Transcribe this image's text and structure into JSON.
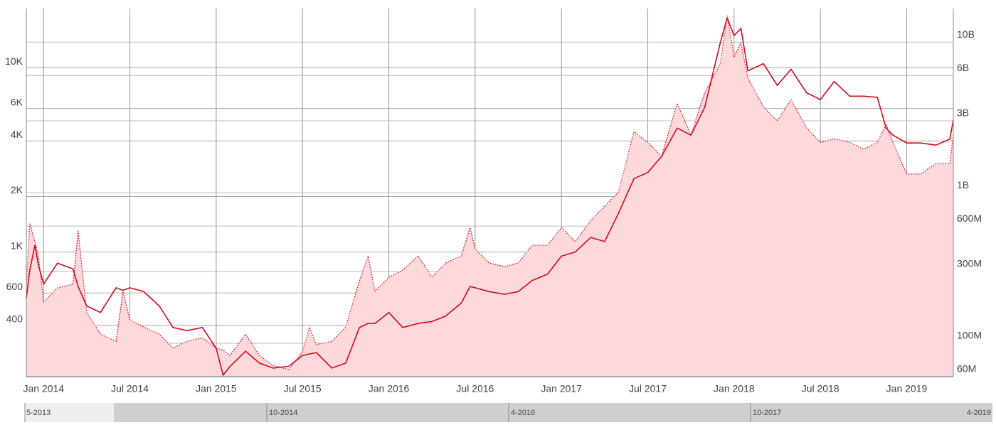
{
  "chart_data": {
    "type": "line",
    "ylog": true,
    "y2log": true,
    "grid": true,
    "xlim": [
      2013.9,
      2019.27
    ],
    "xticks": [
      {
        "value": 2014.0,
        "label": "Jan 2014"
      },
      {
        "value": 2014.5,
        "label": "Jul 2014"
      },
      {
        "value": 2015.0,
        "label": "Jan 2015"
      },
      {
        "value": 2015.5,
        "label": "Jul 2015"
      },
      {
        "value": 2016.0,
        "label": "Jan 2016"
      },
      {
        "value": 2016.5,
        "label": "Jul 2016"
      },
      {
        "value": 2017.0,
        "label": "Jan 2017"
      },
      {
        "value": 2017.5,
        "label": "Jul 2017"
      },
      {
        "value": 2018.0,
        "label": "Jan 2018"
      },
      {
        "value": 2018.5,
        "label": "Jul 2018"
      },
      {
        "value": 2019.0,
        "label": "Jan 2019"
      }
    ],
    "ylim": [
      211,
      20900
    ],
    "yticks": [
      400,
      600,
      {
        "value": 1000,
        "label": "1K"
      },
      {
        "value": 2000,
        "label": "2K"
      },
      {
        "value": 4000,
        "label": "4K"
      },
      {
        "value": 6000,
        "label": "6K"
      },
      {
        "value": 10000,
        "label": "10K"
      }
    ],
    "y2lim": [
      60000000,
      16700000000
    ],
    "y2ticks": [
      {
        "value": 60000000,
        "label": "60M"
      },
      {
        "value": 100000000,
        "label": "100M"
      },
      {
        "value": 300000000,
        "label": "300M"
      },
      {
        "value": 600000000,
        "label": "600M"
      },
      {
        "value": 1000000000,
        "label": "1B"
      },
      {
        "value": 3000000000,
        "label": "3B"
      },
      {
        "value": 6000000000,
        "label": "6B"
      },
      {
        "value": 10000000000,
        "label": "10B"
      }
    ],
    "x": [
      2013.9,
      2013.92,
      2013.95,
      2013.97,
      2014.0,
      2014.08,
      2014.17,
      2014.2,
      2014.25,
      2014.33,
      2014.42,
      2014.46,
      2014.5,
      2014.58,
      2014.67,
      2014.75,
      2014.83,
      2014.92,
      2015.0,
      2015.04,
      2015.08,
      2015.17,
      2015.25,
      2015.33,
      2015.42,
      2015.5,
      2015.54,
      2015.58,
      2015.67,
      2015.75,
      2015.83,
      2015.88,
      2015.92,
      2016.0,
      2016.08,
      2016.17,
      2016.25,
      2016.33,
      2016.42,
      2016.47,
      2016.5,
      2016.58,
      2016.67,
      2016.75,
      2016.83,
      2016.92,
      2017.0,
      2017.08,
      2017.17,
      2017.25,
      2017.33,
      2017.42,
      2017.5,
      2017.58,
      2017.67,
      2017.75,
      2017.83,
      2017.92,
      2017.96,
      2018.0,
      2018.04,
      2018.08,
      2018.17,
      2018.25,
      2018.33,
      2018.42,
      2018.5,
      2018.58,
      2018.67,
      2018.75,
      2018.83,
      2018.88,
      2018.92,
      2019.0,
      2019.08,
      2019.17,
      2019.25,
      2019.27
    ],
    "series": [
      {
        "color": "#d7081d",
        "dash": "solid",
        "values": [
          560,
          800,
          1090,
          850,
          670,
          870,
          810,
          650,
          510,
          470,
          640,
          620,
          640,
          610,
          510,
          390,
          375,
          390,
          300,
          215,
          240,
          290,
          250,
          235,
          240,
          275,
          280,
          285,
          235,
          250,
          390,
          410,
          410,
          470,
          390,
          410,
          420,
          450,
          530,
          650,
          640,
          610,
          590,
          610,
          700,
          760,
          950,
          1000,
          1200,
          1140,
          1620,
          2500,
          2700,
          3300,
          4700,
          4300,
          6100,
          13600,
          18600,
          14900,
          16300,
          9600,
          10500,
          8000,
          9800,
          7300,
          6700,
          8400,
          7000,
          7000,
          6900,
          4700,
          4300,
          3900,
          3900,
          3800,
          4100,
          5200
        ]
      },
      {
        "color": "#d7081d",
        "dash": "dotted",
        "axis": "y2",
        "fill": "#fdd9dc",
        "values": [
          246000000,
          620000000,
          473000000,
          380000000,
          188000000,
          233000000,
          246000000,
          556000000,
          160000000,
          115000000,
          103000000,
          221000000,
          143000000,
          128000000,
          115000000,
          93000000,
          103000000,
          109000000,
          93000000,
          90000000,
          83000000,
          115000000,
          83000000,
          71000000,
          67000000,
          88000000,
          128000000,
          98000000,
          103000000,
          128000000,
          260000000,
          380000000,
          221000000,
          274000000,
          306000000,
          380000000,
          274000000,
          341000000,
          380000000,
          587000000,
          424000000,
          341000000,
          323000000,
          341000000,
          448000000,
          448000000,
          587000000,
          473000000,
          654000000,
          813000000,
          1010000000,
          2540000000,
          2160000000,
          1740000000,
          3930000000,
          2410000000,
          4630000000,
          7140000000,
          14900000000,
          7970000000,
          9900000000,
          5740000000,
          3720000000,
          2990000000,
          4150000000,
          2690000000,
          2160000000,
          2280000000,
          2160000000,
          1940000000,
          2160000000,
          2840000000,
          2160000000,
          1330000000,
          1330000000,
          1560000000,
          1560000000,
          2410000000
        ]
      }
    ],
    "navigator": {
      "labels": [
        "5-2013",
        "10-2014",
        "4-2016",
        "10-2017",
        "4-2019"
      ]
    }
  }
}
